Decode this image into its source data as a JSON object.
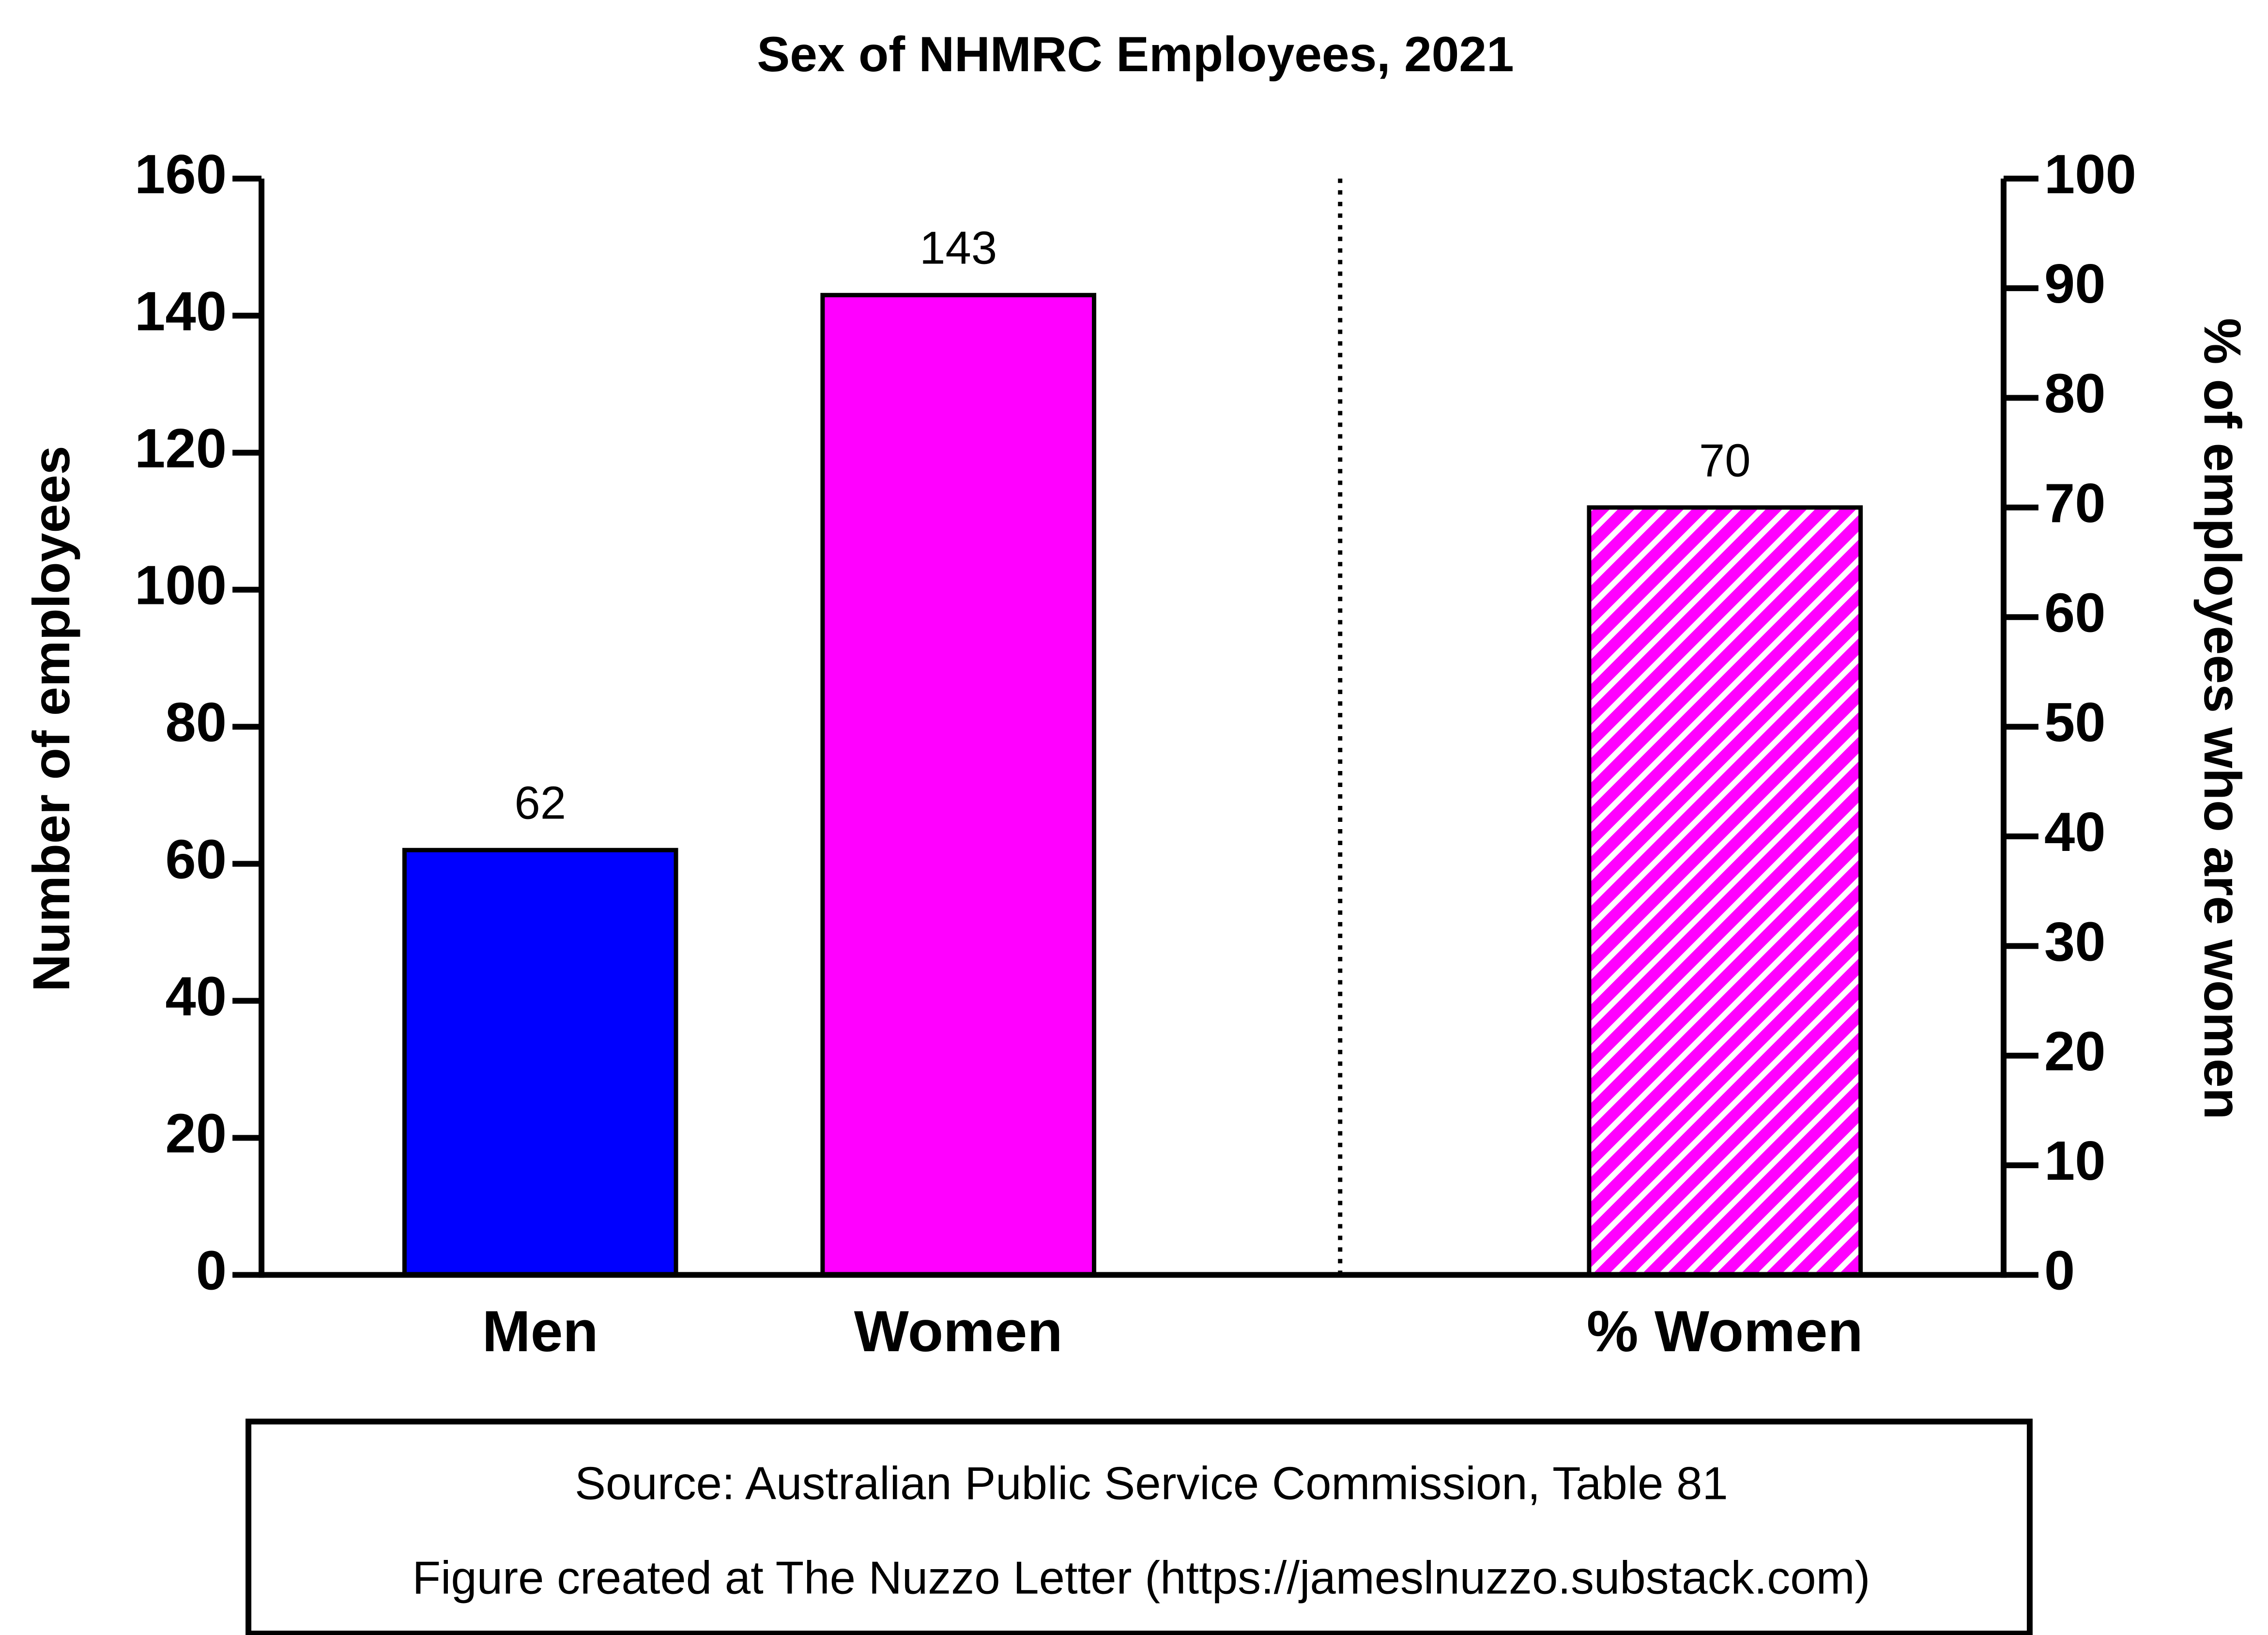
{
  "chart_data": {
    "type": "bar",
    "title": "Sex of NHMRC Employees, 2021",
    "ylabel": "Number of employees",
    "y2label": "% of employees who are women",
    "categories": [
      "Men",
      "Women",
      "% Women"
    ],
    "values": [
      62,
      143,
      70
    ],
    "bar_axes": [
      "y",
      "y",
      "y2"
    ],
    "colors": [
      "#0000ff",
      "#ff00ff",
      "#ff00ff"
    ],
    "patterns": [
      "solid",
      "solid",
      "hatch"
    ],
    "ylim": [
      0,
      160
    ],
    "yticks": [
      0,
      20,
      40,
      60,
      80,
      100,
      120,
      140,
      160
    ],
    "y2lim": [
      0,
      100
    ],
    "y2ticks": [
      0,
      10,
      20,
      30,
      40,
      50,
      60,
      70,
      80,
      90,
      100
    ],
    "grid": false,
    "notes": [
      "Source: Australian Public Service Commission, Table 81",
      "Figure created at The Nuzzo Letter (https://jameslnuzzo.substack.com)"
    ]
  }
}
